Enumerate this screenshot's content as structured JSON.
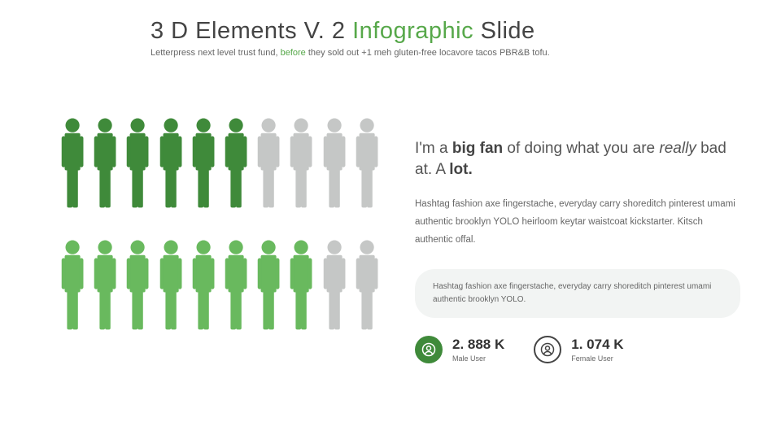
{
  "header": {
    "title_pre": "3 D Elements V. 2 ",
    "title_accent": "Infographic",
    "title_post": " Slide",
    "subtitle_pre": "Letterpress next level trust fund, ",
    "subtitle_accent": "before",
    "subtitle_post": " they sold out +1 meh gluten-free locavore tacos PBR&B tofu."
  },
  "colors": {
    "dark_green": "#3f8a3a",
    "light_green": "#69b95e",
    "grey": "#c5c7c6"
  },
  "people": {
    "row1": [
      "dark_green",
      "dark_green",
      "dark_green",
      "dark_green",
      "dark_green",
      "dark_green",
      "grey",
      "grey",
      "grey",
      "grey"
    ],
    "row2": [
      "light_green",
      "light_green",
      "light_green",
      "light_green",
      "light_green",
      "light_green",
      "light_green",
      "light_green",
      "grey",
      "grey"
    ]
  },
  "quote": {
    "p1": "I'm a ",
    "bold1": "big fan",
    "p2": " of doing what you are ",
    "ital": "really",
    "p3": " bad at. A ",
    "bold2": "lot."
  },
  "paragraph": "Hashtag fashion axe fingerstache, everyday carry shoreditch pinterest umami authentic brooklyn YOLO heirloom keytar waistcoat kickstarter. Kitsch authentic offal.",
  "pill": "Hashtag fashion axe fingerstache, everyday carry shoreditch pinterest umami authentic brooklyn YOLO.",
  "stats": [
    {
      "value": "2. 888 K",
      "label": "Male User",
      "icon_style": "green"
    },
    {
      "value": "1. 074 K",
      "label": "Female User",
      "icon_style": "outline"
    }
  ]
}
